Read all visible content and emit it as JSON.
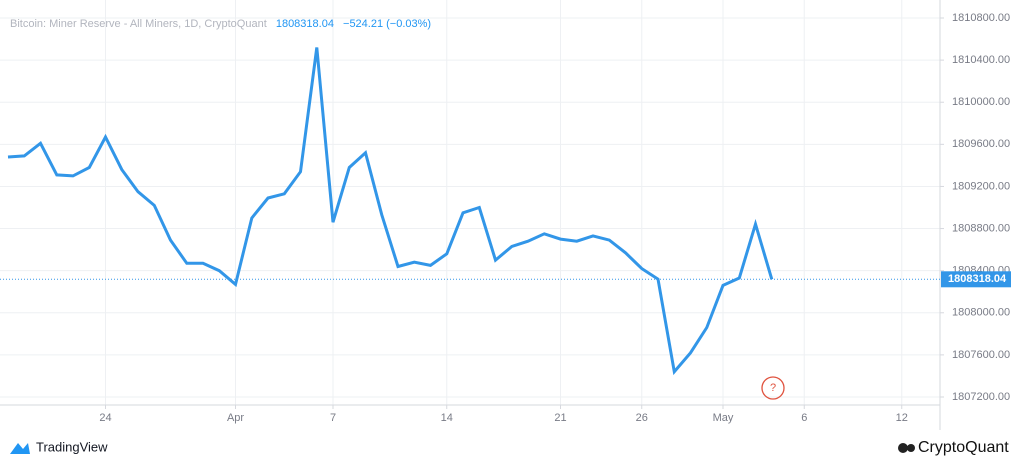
{
  "chart_data": {
    "type": "line",
    "title": "Bitcoin: Miner Reserve - All Miners, 1D, CryptoQuant",
    "change_text": "−524.21 (−0.03%)",
    "annotation": "?",
    "branding_left": "TradingView",
    "branding_right": "CryptoQuant",
    "categories": [
      null,
      null,
      null,
      null,
      null,
      null,
      "24",
      null,
      null,
      null,
      null,
      null,
      null,
      null,
      "Apr",
      null,
      null,
      null,
      null,
      null,
      "7",
      null,
      null,
      null,
      null,
      null,
      null,
      "14",
      null,
      null,
      null,
      null,
      null,
      null,
      "21",
      null,
      null,
      null,
      null,
      "26",
      null,
      null,
      null,
      null,
      "May",
      null,
      null,
      null,
      null,
      "6",
      null,
      null,
      null,
      null,
      null,
      "12",
      null,
      null
    ],
    "series": [
      {
        "name": "Miner Reserve",
        "color": "#3296e8",
        "values": [
          1809480,
          1809490,
          1809610,
          1809310,
          1809300,
          1809380,
          1809670,
          1809360,
          1809150,
          1809020,
          1808690,
          1808470,
          1808470,
          1808400,
          1808270,
          1808900,
          1809090,
          1809130,
          1809340,
          1810520,
          1808860,
          1809380,
          1809520,
          1808930,
          1808440,
          1808480,
          1808450,
          1808560,
          1808950,
          1809000,
          1808500,
          1808630,
          1808680,
          1808750,
          1808700,
          1808680,
          1808730,
          1808690,
          1808570,
          1808420,
          1808320,
          1807440,
          1807620,
          1807860,
          1808260,
          1808330,
          1808842.25,
          1808318.04,
          null,
          null,
          null,
          null,
          null,
          null,
          null,
          null,
          null,
          null
        ],
        "value_labels": {
          "47": "1808318.04"
        }
      }
    ],
    "ylim": [
      1807124,
      1810895
    ],
    "yticks": [
      {
        "value": 1807200,
        "label": "1807200.00"
      },
      {
        "value": 1807600,
        "label": "1807600.00"
      },
      {
        "value": 1808000,
        "label": "1808000.00"
      },
      {
        "value": 1808400,
        "label": "1808400.00"
      },
      {
        "value": 1808800,
        "label": "1808800.00"
      },
      {
        "value": 1809200,
        "label": "1809200.00"
      },
      {
        "value": 1809600,
        "label": "1809600.00"
      },
      {
        "value": 1810000,
        "label": "1810000.00"
      },
      {
        "value": 1810400,
        "label": "1810400.00"
      },
      {
        "value": 1810800,
        "label": "1810800.00"
      }
    ],
    "grid": true
  }
}
